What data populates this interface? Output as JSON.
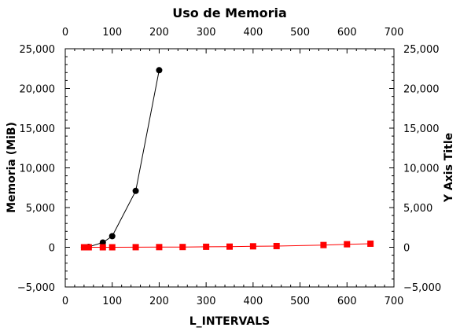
{
  "chart_data": {
    "type": "line",
    "title": "Uso de Memoria",
    "xlabel": "L_INTERVALS",
    "ylabel": "Memoria (MiB)",
    "y2label": "Y Axis Title",
    "xlim": [
      0,
      700
    ],
    "ylim": [
      -5000,
      25000
    ],
    "xticks": [
      "0",
      "100",
      "200",
      "300",
      "400",
      "500",
      "600",
      "700"
    ],
    "yticks": [
      "−5,000",
      "0",
      "5,000",
      "10,000",
      "15,000",
      "20,000",
      "25,000"
    ],
    "grid": false,
    "legend": "none",
    "series": [
      {
        "color": "#000000",
        "marker": "circle",
        "x": [
          40,
          50,
          80,
          100,
          150,
          200
        ],
        "y": [
          0,
          50,
          600,
          1400,
          7100,
          22300
        ]
      },
      {
        "color": "#ff0000",
        "marker": "square",
        "x": [
          40,
          50,
          80,
          100,
          150,
          200,
          250,
          300,
          350,
          400,
          450,
          550,
          600,
          650
        ],
        "y": [
          0,
          0,
          0,
          0,
          10,
          20,
          30,
          60,
          80,
          120,
          150,
          280,
          380,
          450
        ]
      }
    ]
  }
}
